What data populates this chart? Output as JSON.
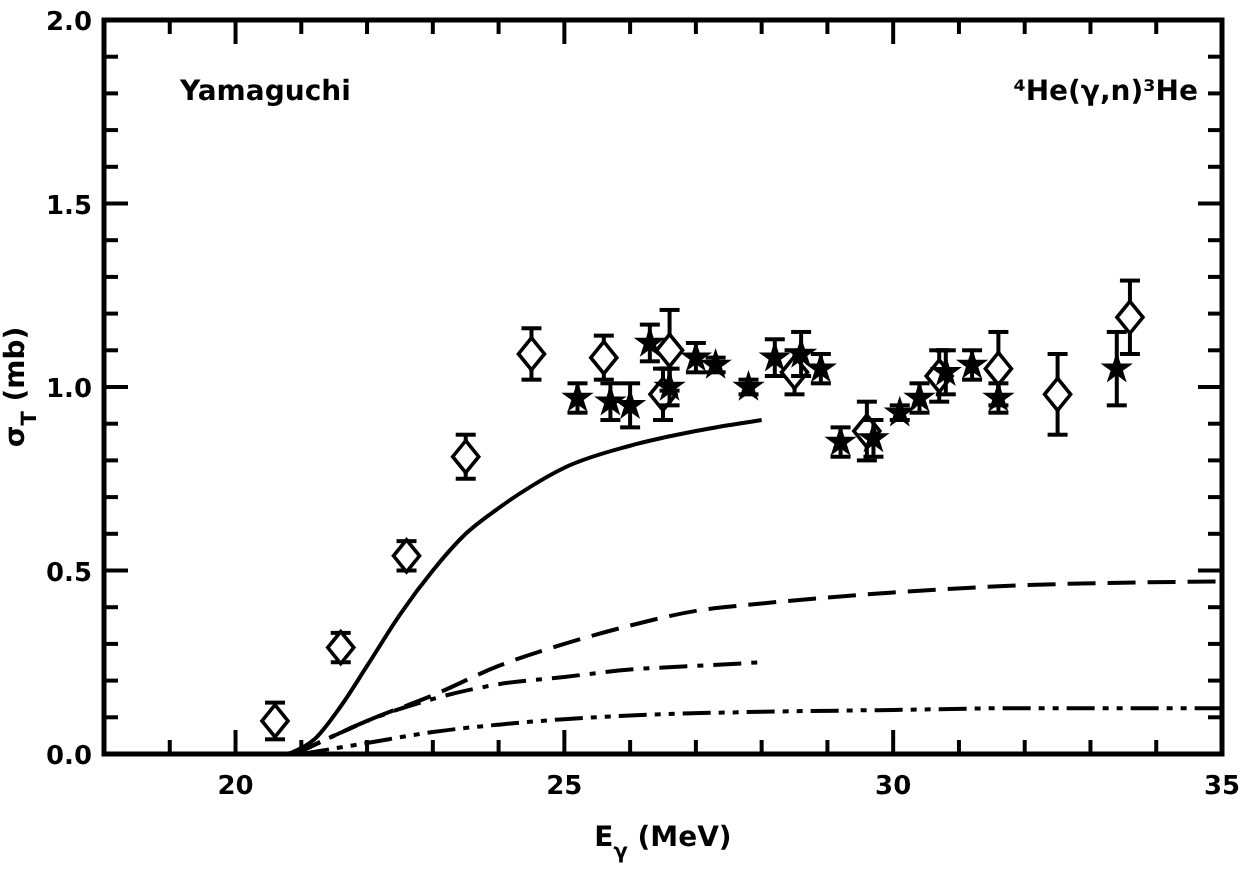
{
  "chart_data": {
    "type": "scatter",
    "xlabel": "E$_{γ}$ (MeV)",
    "ylabel": "σ$_{T}$ (mb)",
    "annotations": [
      "Yamaguchi",
      "⁴He(γ,n)³He"
    ],
    "xlim": [
      18,
      35
    ],
    "ylim": [
      0,
      2
    ],
    "xticks": [
      {
        "value": 19,
        "label": null
      },
      {
        "value": 20,
        "label": "20"
      },
      {
        "value": 21,
        "label": null
      },
      {
        "value": 22,
        "label": null
      },
      {
        "value": 23,
        "label": null
      },
      {
        "value": 24,
        "label": null
      },
      {
        "value": 25,
        "label": "25"
      },
      {
        "value": 26,
        "label": null
      },
      {
        "value": 27,
        "label": null
      },
      {
        "value": 28,
        "label": null
      },
      {
        "value": 29,
        "label": null
      },
      {
        "value": 30,
        "label": "30"
      },
      {
        "value": 31,
        "label": null
      },
      {
        "value": 32,
        "label": null
      },
      {
        "value": 33,
        "label": null
      },
      {
        "value": 34,
        "label": null
      },
      {
        "value": 35,
        "label": "35"
      }
    ],
    "yticks": [
      {
        "value": 0,
        "label": "0.0"
      },
      {
        "value": 0.1,
        "label": null
      },
      {
        "value": 0.2,
        "label": null
      },
      {
        "value": 0.3,
        "label": null
      },
      {
        "value": 0.4,
        "label": null
      },
      {
        "value": 0.5,
        "label": "0.5"
      },
      {
        "value": 0.6,
        "label": null
      },
      {
        "value": 0.7,
        "label": null
      },
      {
        "value": 0.8,
        "label": null
      },
      {
        "value": 0.9,
        "label": null
      },
      {
        "value": 1,
        "label": "1.0"
      },
      {
        "value": 1.1,
        "label": null
      },
      {
        "value": 1.2,
        "label": null
      },
      {
        "value": 1.3,
        "label": null
      },
      {
        "value": 1.4,
        "label": null
      },
      {
        "value": 1.5,
        "label": "1.5"
      },
      {
        "value": 1.6,
        "label": null
      },
      {
        "value": 1.7,
        "label": null
      },
      {
        "value": 1.8,
        "label": null
      },
      {
        "value": 1.9,
        "label": null
      },
      {
        "value": 2,
        "label": "2.0"
      }
    ],
    "series": [
      {
        "marker": "diamond",
        "color": "#000000",
        "x": [
          20.6,
          21.6,
          22.6,
          23.5,
          24.5,
          25.6,
          26.5,
          26.6,
          28.5,
          29.6,
          30.7,
          31.6,
          32.5,
          33.6
        ],
        "values": [
          0.09,
          0.29,
          0.54,
          0.81,
          1.09,
          1.08,
          0.98,
          1.1,
          1.04,
          0.88,
          1.03,
          1.05,
          0.98,
          1.19
        ],
        "errors": [
          0.05,
          0.04,
          0.04,
          0.06,
          0.07,
          0.06,
          0.07,
          0.11,
          0.06,
          0.08,
          0.07,
          0.1,
          0.11,
          0.1
        ]
      },
      {
        "marker": "star",
        "color": "#000000",
        "x": [
          25.2,
          25.7,
          26.0,
          26.3,
          26.6,
          27.0,
          27.3,
          27.8,
          28.2,
          28.6,
          28.9,
          29.2,
          29.7,
          30.1,
          30.4,
          30.8,
          31.2,
          31.6,
          33.4
        ],
        "values": [
          0.97,
          0.96,
          0.95,
          1.12,
          1.0,
          1.08,
          1.06,
          1.0,
          1.08,
          1.09,
          1.05,
          0.85,
          0.86,
          0.93,
          0.97,
          1.04,
          1.06,
          0.97,
          1.05
        ],
        "errors": [
          0.04,
          0.05,
          0.06,
          0.05,
          0.05,
          0.04,
          0.02,
          0.02,
          0.05,
          0.06,
          0.04,
          0.04,
          0.05,
          0.02,
          0.04,
          0.06,
          0.04,
          0.04,
          0.1
        ]
      },
      {
        "type": "line",
        "line_style": "solid",
        "color": "#000000",
        "x": [
          20.8,
          21.2,
          21.6,
          22,
          22.5,
          23,
          23.5,
          24,
          24.5,
          25,
          26,
          27,
          28
        ],
        "values": [
          0,
          0.04,
          0.13,
          0.24,
          0.38,
          0.5,
          0.6,
          0.67,
          0.73,
          0.78,
          0.84,
          0.88,
          0.91
        ]
      },
      {
        "type": "line",
        "line_style": "dashed",
        "color": "#000000",
        "x": [
          20.9,
          21.5,
          22,
          23,
          24,
          25,
          26,
          27,
          28,
          30,
          32,
          35
        ],
        "values": [
          0,
          0.05,
          0.09,
          0.16,
          0.24,
          0.3,
          0.35,
          0.39,
          0.41,
          0.44,
          0.46,
          0.47
        ]
      },
      {
        "type": "line",
        "line_style": "dashdot",
        "color": "#000000",
        "x": [
          20.9,
          21.5,
          22,
          23,
          24,
          25,
          26,
          27,
          28
        ],
        "values": [
          0,
          0.05,
          0.09,
          0.15,
          0.19,
          0.21,
          0.23,
          0.24,
          0.25
        ]
      },
      {
        "type": "line",
        "line_style": "dashdotdot",
        "color": "#000000",
        "x": [
          21,
          22,
          23,
          24,
          25,
          26,
          28,
          30,
          32,
          35
        ],
        "values": [
          0,
          0.03,
          0.06,
          0.08,
          0.095,
          0.105,
          0.115,
          0.12,
          0.125,
          0.125
        ]
      }
    ]
  }
}
